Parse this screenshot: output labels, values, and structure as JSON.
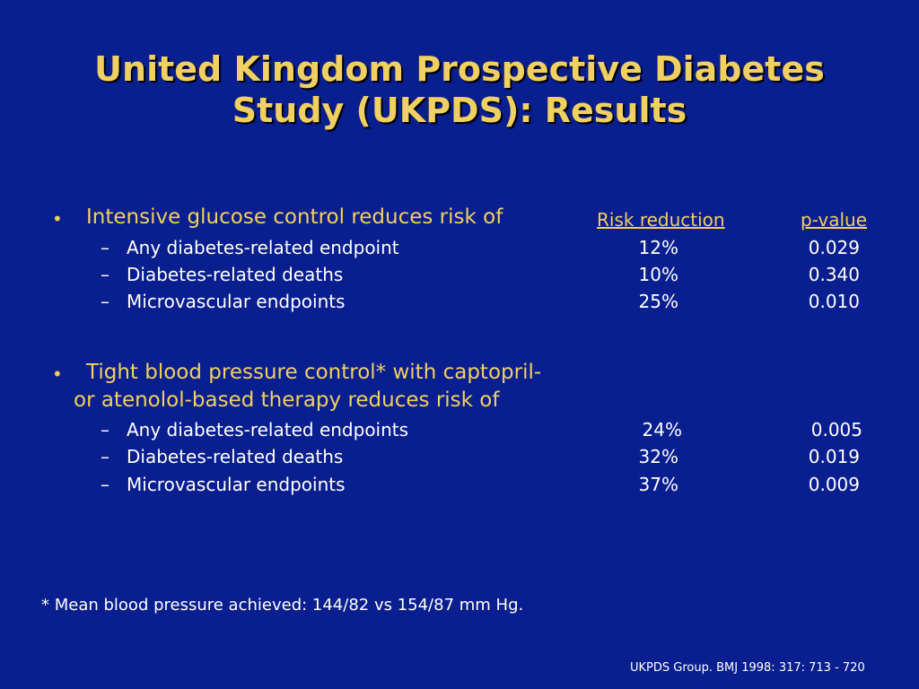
{
  "title": {
    "line1": "United Kingdom Prospective Diabetes",
    "line2": "Study (UKPDS): Results"
  },
  "section1": {
    "bullet": "•",
    "heading": "Intensive glucose control reduces risk of",
    "col_risk_header": "Risk reduction",
    "col_p_header": "p-value",
    "rows": [
      {
        "dash": "–",
        "label": "Any diabetes-related endpoint",
        "risk": "12%",
        "p": "0.029"
      },
      {
        "dash": "–",
        "label": "Diabetes-related deaths",
        "risk": "10%",
        "p": "0.340"
      },
      {
        "dash": "–",
        "label": "Microvascular endpoints",
        "risk": "25%",
        "p": "0.010"
      }
    ]
  },
  "section2": {
    "bullet": "•",
    "heading_line1": "Tight blood pressure control* with captopril-",
    "heading_line2": "or atenolol-based therapy reduces risk of",
    "rows": [
      {
        "dash": "–",
        "label": "Any diabetes-related endpoints",
        "risk": "24%",
        "p": "0.005"
      },
      {
        "dash": "–",
        "label": "Diabetes-related deaths",
        "risk": "32%",
        "p": "0.019"
      },
      {
        "dash": "–",
        "label": "Microvascular endpoints",
        "risk": "37%",
        "p": "0.009"
      }
    ]
  },
  "footnote": "* Mean blood pressure achieved:  144/82 vs 154/87 mm Hg.",
  "citation": "UKPDS Group. BMJ  1998: 317: 713 - 720",
  "colors": {
    "background": "#0a1f8f",
    "title": "#f0d060",
    "text": "#ffffff"
  }
}
